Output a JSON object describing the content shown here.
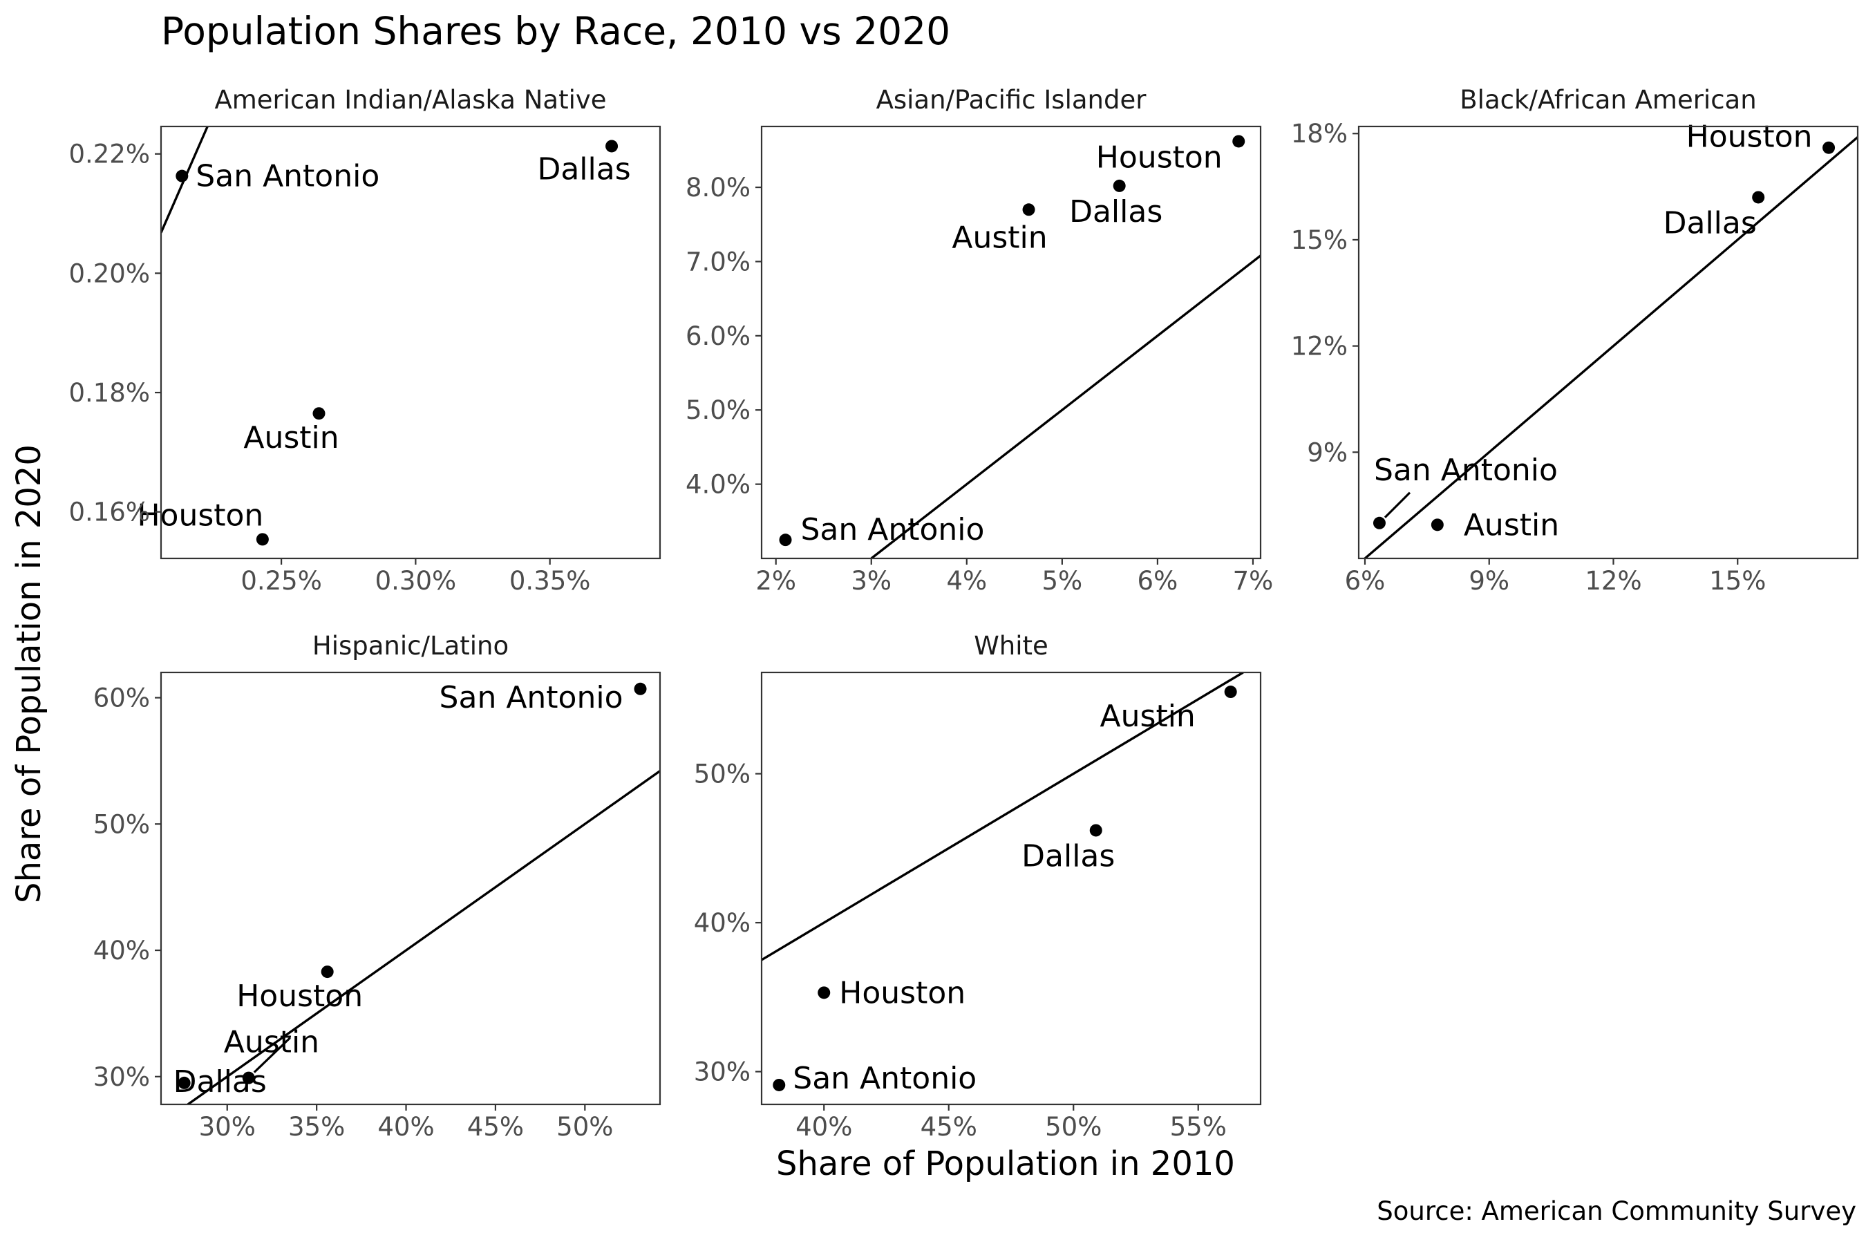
{
  "title": "Population Shares by Race, 2010 vs 2020",
  "xlabel": "Share of Population in 2010",
  "ylabel": "Share of Population in 2020",
  "caption": "Source: American Community Survey",
  "colors": {
    "points": "#000000",
    "line": "#000000",
    "panel_border": "#333333",
    "tick_label": "#4d4d4d"
  },
  "chart_data": [
    {
      "type": "scatter",
      "facet": "American Indian/Alaska Native",
      "xlim": [
        0.2052,
        0.391
      ],
      "ylim": [
        0.1522,
        0.2246
      ],
      "x_ticks": [
        {
          "value": 0.25,
          "label": "0.25%"
        },
        {
          "value": 0.3,
          "label": "0.30%"
        },
        {
          "value": 0.35,
          "label": "0.35%"
        }
      ],
      "y_ticks": [
        {
          "value": 0.16,
          "label": "0.16%"
        },
        {
          "value": 0.18,
          "label": "0.18%"
        },
        {
          "value": 0.2,
          "label": "0.20%"
        },
        {
          "value": 0.22,
          "label": "0.22%"
        }
      ],
      "points": [
        {
          "city": "Austin",
          "x": 0.264,
          "y": 0.1765
        },
        {
          "city": "Dallas",
          "x": 0.373,
          "y": 0.2213
        },
        {
          "city": "Houston",
          "x": 0.243,
          "y": 0.1554
        },
        {
          "city": "San Antonio",
          "x": 0.213,
          "y": 0.2163
        }
      ],
      "line": [
        [
          0.2052,
          0.2068
        ],
        [
          0.2225,
          0.2246
        ]
      ]
    },
    {
      "type": "scatter",
      "facet": "Asian/Pacific Islander",
      "xlim": [
        1.85,
        7.08
      ],
      "ylim": [
        3.0,
        8.82
      ],
      "x_ticks": [
        {
          "value": 2,
          "label": "2%"
        },
        {
          "value": 3,
          "label": "3%"
        },
        {
          "value": 4,
          "label": "4%"
        },
        {
          "value": 5,
          "label": "5%"
        },
        {
          "value": 6,
          "label": "6%"
        },
        {
          "value": 7,
          "label": "7%"
        }
      ],
      "y_ticks": [
        {
          "value": 4,
          "label": "4.0%"
        },
        {
          "value": 5,
          "label": "5.0%"
        },
        {
          "value": 6,
          "label": "6.0%"
        },
        {
          "value": 7,
          "label": "7.0%"
        },
        {
          "value": 8,
          "label": "8.0%"
        }
      ],
      "points": [
        {
          "city": "Austin",
          "x": 4.65,
          "y": 7.7
        },
        {
          "city": "Dallas",
          "x": 5.6,
          "y": 8.02
        },
        {
          "city": "Houston",
          "x": 6.85,
          "y": 8.62
        },
        {
          "city": "San Antonio",
          "x": 2.1,
          "y": 3.25
        }
      ],
      "line": [
        [
          3.0,
          3.0
        ],
        [
          7.08,
          7.08
        ]
      ]
    },
    {
      "type": "scatter",
      "facet": "Black/African American",
      "xlim": [
        5.85,
        17.9
      ],
      "ylim": [
        6.0,
        18.2
      ],
      "x_ticks": [
        {
          "value": 6,
          "label": "6%"
        },
        {
          "value": 9,
          "label": "9%"
        },
        {
          "value": 12,
          "label": "12%"
        },
        {
          "value": 15,
          "label": "15%"
        }
      ],
      "y_ticks": [
        {
          "value": 9,
          "label": "9%"
        },
        {
          "value": 12,
          "label": "12%"
        },
        {
          "value": 15,
          "label": "15%"
        },
        {
          "value": 18,
          "label": "18%"
        }
      ],
      "points": [
        {
          "city": "Austin",
          "x": 7.75,
          "y": 6.95
        },
        {
          "city": "Dallas",
          "x": 15.5,
          "y": 16.2
        },
        {
          "city": "Houston",
          "x": 17.2,
          "y": 17.6
        },
        {
          "city": "San Antonio",
          "x": 6.35,
          "y": 7.0
        }
      ],
      "line": [
        [
          6.0,
          6.0
        ],
        [
          17.9,
          17.9
        ]
      ]
    },
    {
      "type": "scatter",
      "facet": "Hispanic/Latino",
      "xlim": [
        26.3,
        54.2
      ],
      "ylim": [
        27.8,
        62.0
      ],
      "x_ticks": [
        {
          "value": 30,
          "label": "30%"
        },
        {
          "value": 35,
          "label": "35%"
        },
        {
          "value": 40,
          "label": "40%"
        },
        {
          "value": 45,
          "label": "45%"
        },
        {
          "value": 50,
          "label": "50%"
        }
      ],
      "y_ticks": [
        {
          "value": 30,
          "label": "30%"
        },
        {
          "value": 40,
          "label": "40%"
        },
        {
          "value": 50,
          "label": "50%"
        },
        {
          "value": 60,
          "label": "60%"
        }
      ],
      "points": [
        {
          "city": "Austin",
          "x": 31.2,
          "y": 29.9
        },
        {
          "city": "Dallas",
          "x": 27.6,
          "y": 29.5
        },
        {
          "city": "Houston",
          "x": 35.6,
          "y": 38.3
        },
        {
          "city": "San Antonio",
          "x": 53.1,
          "y": 60.7
        }
      ],
      "line": [
        [
          27.8,
          27.8
        ],
        [
          54.2,
          54.2
        ]
      ]
    },
    {
      "type": "scatter",
      "facet": "White",
      "xlim": [
        37.5,
        57.5
      ],
      "ylim": [
        27.8,
        56.8
      ],
      "x_ticks": [
        {
          "value": 40,
          "label": "40%"
        },
        {
          "value": 45,
          "label": "45%"
        },
        {
          "value": 50,
          "label": "50%"
        },
        {
          "value": 55,
          "label": "55%"
        }
      ],
      "y_ticks": [
        {
          "value": 30,
          "label": "30%"
        },
        {
          "value": 40,
          "label": "40%"
        },
        {
          "value": 50,
          "label": "50%"
        }
      ],
      "points": [
        {
          "city": "Austin",
          "x": 56.3,
          "y": 55.5
        },
        {
          "city": "Dallas",
          "x": 50.9,
          "y": 46.2
        },
        {
          "city": "Houston",
          "x": 40.0,
          "y": 35.3
        },
        {
          "city": "San Antonio",
          "x": 38.2,
          "y": 29.1
        }
      ],
      "line": [
        [
          37.5,
          37.5
        ],
        [
          56.8,
          56.8
        ]
      ]
    }
  ]
}
